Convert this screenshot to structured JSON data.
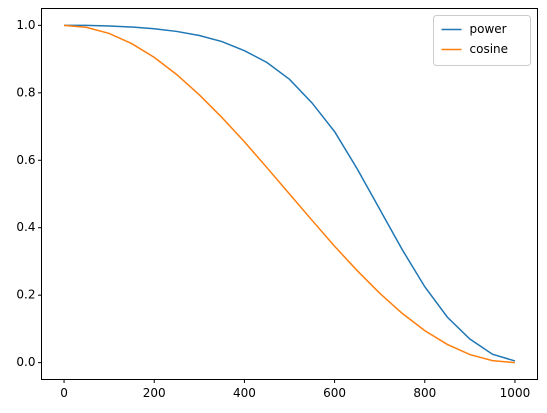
{
  "chart_data": {
    "type": "line",
    "x": [
      0,
      50,
      100,
      150,
      200,
      250,
      300,
      350,
      400,
      450,
      500,
      550,
      600,
      650,
      700,
      750,
      800,
      850,
      900,
      950,
      1000
    ],
    "series": [
      {
        "name": "power",
        "color": "#1f77b4",
        "values": [
          1.0,
          1.0,
          0.998,
          0.995,
          0.99,
          0.982,
          0.97,
          0.952,
          0.925,
          0.89,
          0.84,
          0.77,
          0.685,
          0.575,
          0.455,
          0.335,
          0.225,
          0.135,
          0.07,
          0.025,
          0.005
        ]
      },
      {
        "name": "cosine",
        "color": "#ff7f0e",
        "values": [
          1.0,
          0.994,
          0.976,
          0.946,
          0.905,
          0.854,
          0.794,
          0.727,
          0.655,
          0.578,
          0.5,
          0.422,
          0.345,
          0.273,
          0.206,
          0.146,
          0.095,
          0.054,
          0.024,
          0.006,
          0.0
        ]
      }
    ],
    "xlim": [
      -50,
      1050
    ],
    "ylim": [
      -0.05,
      1.05
    ],
    "xticks": [
      0,
      200,
      400,
      600,
      800,
      1000
    ],
    "yticks": [
      {
        "value": 0,
        "label": "0.0"
      },
      {
        "value": 0.2,
        "label": "0.2"
      },
      {
        "value": 0.4,
        "label": "0.4"
      },
      {
        "value": 0.6,
        "label": "0.6"
      },
      {
        "value": 0.8,
        "label": "0.8"
      },
      {
        "value": 1,
        "label": "1.0"
      }
    ],
    "legend": "upper right"
  }
}
